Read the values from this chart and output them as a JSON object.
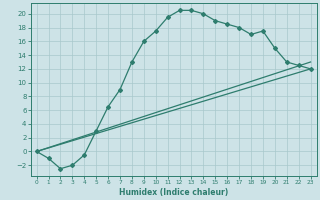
{
  "xlabel": "Humidex (Indice chaleur)",
  "bg_color": "#cde3e7",
  "grid_color": "#a8c8cc",
  "line_color": "#2e7d6e",
  "xlim": [
    -0.5,
    23.5
  ],
  "ylim": [
    -3.5,
    21.5
  ],
  "xticks": [
    0,
    1,
    2,
    3,
    4,
    5,
    6,
    7,
    8,
    9,
    10,
    11,
    12,
    13,
    14,
    15,
    16,
    17,
    18,
    19,
    20,
    21,
    22,
    23
  ],
  "yticks": [
    -2,
    0,
    2,
    4,
    6,
    8,
    10,
    12,
    14,
    16,
    18,
    20
  ],
  "line1_x": [
    0,
    1,
    2,
    3,
    4,
    5,
    6,
    7,
    8,
    9,
    10,
    11,
    12,
    13,
    14,
    15,
    16,
    17,
    18,
    19,
    20,
    21,
    22,
    23
  ],
  "line1_y": [
    0,
    -1,
    -2.5,
    -2,
    -0.5,
    3,
    6.5,
    9,
    13,
    16,
    17.5,
    19.5,
    20.5,
    20.5,
    20,
    19,
    18.5,
    18,
    17,
    17.5,
    15,
    13,
    12.5,
    12
  ],
  "line2_x": [
    0,
    23
  ],
  "line2_y": [
    0,
    12
  ],
  "line3_x": [
    0,
    23
  ],
  "line3_y": [
    0,
    13
  ]
}
